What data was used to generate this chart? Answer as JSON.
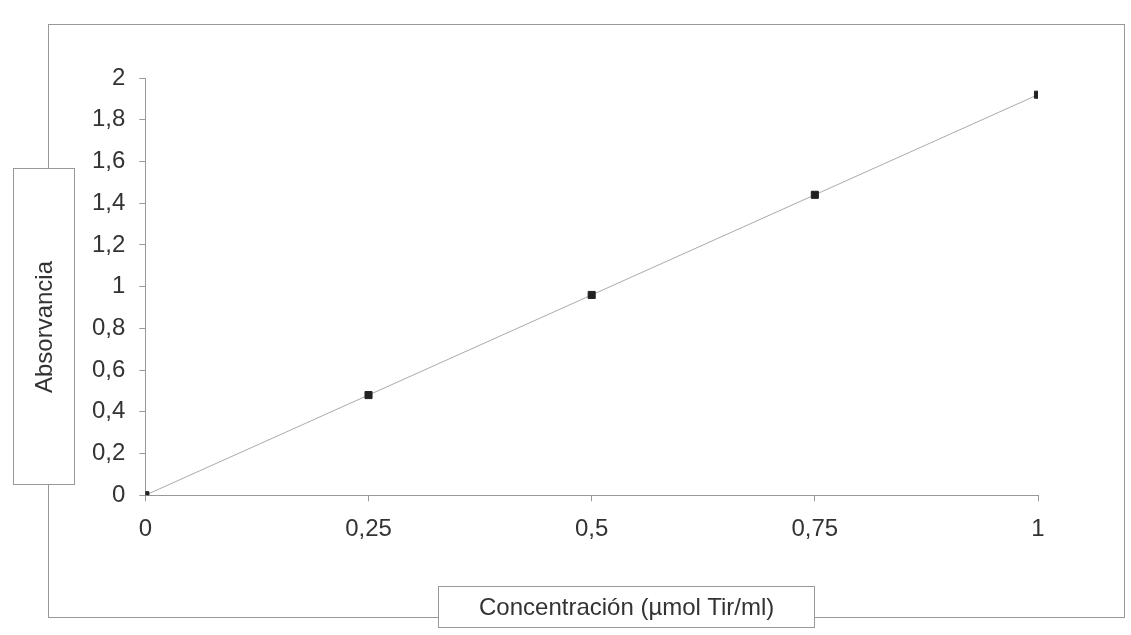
{
  "chart_data": {
    "type": "line",
    "xlabel": "Concentración (µmol Tir/ml)",
    "ylabel": "Absorvancia",
    "x": [
      0,
      0.25,
      0.5,
      0.75,
      1
    ],
    "series": [
      {
        "color": "#222222",
        "values": [
          0,
          0.48,
          0.96,
          1.44,
          1.92
        ]
      }
    ],
    "xlim": [
      0,
      1
    ],
    "xticks": [
      0,
      {
        "value": 0.25,
        "label": "0,25"
      },
      {
        "value": 0.5,
        "label": "0,5"
      },
      {
        "value": 0.75,
        "label": "0,75"
      },
      1
    ],
    "ylim": [
      0,
      2
    ],
    "yticks": [
      0,
      {
        "value": 0.2,
        "label": "0,2"
      },
      {
        "value": 0.4,
        "label": "0,4"
      },
      {
        "value": 0.6,
        "label": "0,6"
      },
      {
        "value": 0.8,
        "label": "0,8"
      },
      1,
      {
        "value": 1.2,
        "label": "1,2"
      },
      {
        "value": 1.4,
        "label": "1,4"
      },
      {
        "value": 1.6,
        "label": "1,6"
      },
      {
        "value": 1.8,
        "label": "1,8"
      },
      2
    ],
    "grid": false,
    "legend": false,
    "marker": "square",
    "line_style": "solid"
  }
}
